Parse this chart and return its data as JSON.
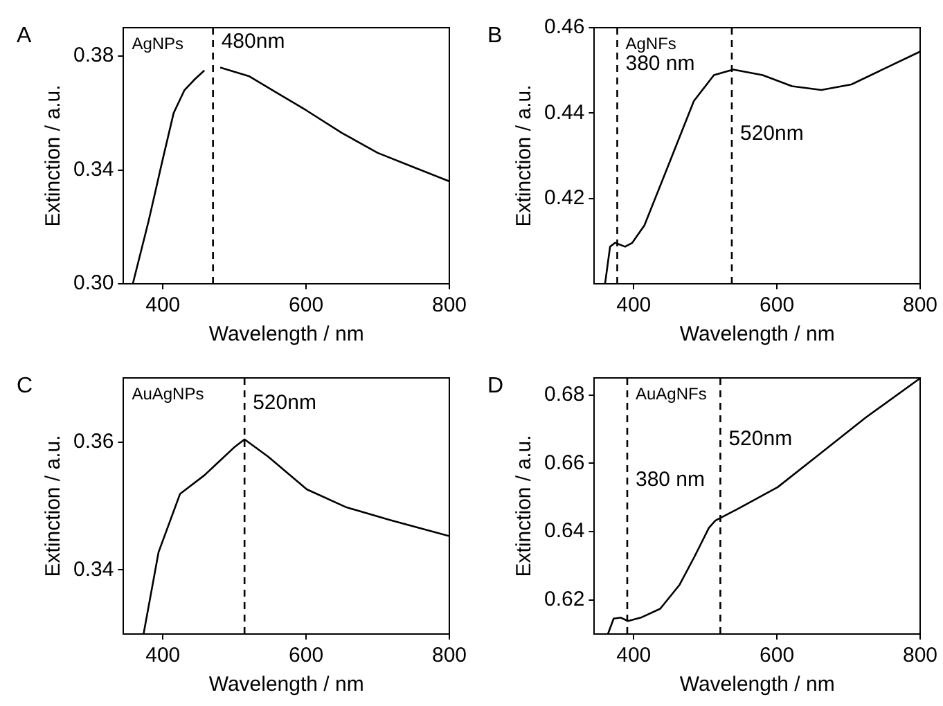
{
  "chart_data": [
    {
      "type": "line",
      "xlabel": "Wavelength / nm",
      "ylabel": "Extinction / a.u.",
      "annotations": [
        "A",
        "AgNPs",
        {
          "text": "480nm",
          "x": 470,
          "y": 0.385
        }
      ],
      "xlim": [
        345,
        800
      ],
      "ylim": [
        0.3,
        0.39
      ],
      "xticks": [
        400,
        600,
        800
      ],
      "yticks": [
        {
          "value": 0.3,
          "label": "0.30"
        },
        {
          "value": 0.34,
          "label": "0.34"
        },
        {
          "value": 0.38,
          "label": "0.38"
        }
      ],
      "grid": false,
      "legend": false,
      "marker": "none",
      "ref_lines": [
        {
          "axis": "x",
          "value": 470,
          "line_style": "dashed",
          "color": "#000000"
        }
      ],
      "series": [
        {
          "color": "#000000",
          "x": [
            358,
            380,
            400,
            415,
            430,
            445,
            458,
            470,
            480,
            520,
            560,
            600,
            650,
            700,
            750,
            800
          ],
          "values": [
            0.3,
            0.322,
            0.344,
            0.36,
            0.368,
            0.372,
            0.375,
            null,
            0.376,
            0.373,
            0.367,
            0.361,
            0.353,
            0.346,
            0.341,
            0.336
          ]
        }
      ]
    },
    {
      "type": "line",
      "xlabel": "Wavelength / nm",
      "ylabel": "Extinction / a.u.",
      "annotations": [
        "B",
        "AgNFs",
        {
          "text": "380 nm",
          "x": 377,
          "y": 0.4515
        },
        {
          "text": "520nm",
          "x": 537,
          "y": 0.435
        }
      ],
      "xlim": [
        345,
        800
      ],
      "ylim": [
        0.4,
        0.46
      ],
      "xticks": [
        400,
        600,
        800
      ],
      "yticks": [
        {
          "value": 0.42,
          "label": "0.42"
        },
        {
          "value": 0.44,
          "label": "0.44"
        },
        {
          "value": 0.46,
          "label": "0.46"
        }
      ],
      "grid": false,
      "legend": false,
      "marker": "none",
      "ref_lines": [
        {
          "axis": "x",
          "value": 377,
          "line_style": "dashed",
          "color": "#000000"
        },
        {
          "axis": "x",
          "value": 537,
          "line_style": "dashed",
          "color": "#000000"
        }
      ],
      "series": [
        {
          "color": "#000000",
          "x": [
            360,
            367,
            374,
            388,
            398,
            415,
            449,
            484,
            512,
            539,
            580,
            621,
            662,
            704,
            745,
            800
          ],
          "values": [
            0.4,
            0.4087,
            0.4096,
            0.4087,
            0.4096,
            0.4137,
            0.428,
            0.4428,
            0.4489,
            0.4502,
            0.4489,
            0.4463,
            0.4454,
            0.4467,
            0.45,
            0.4544
          ]
        }
      ]
    },
    {
      "type": "line",
      "xlabel": "Wavelength / nm",
      "ylabel": "Extinction / a.u.",
      "annotations": [
        "C",
        "AuAgNPs",
        {
          "text": "520nm",
          "x": 514,
          "y": 0.366
        }
      ],
      "xlim": [
        345,
        800
      ],
      "ylim": [
        0.33,
        0.37
      ],
      "xticks": [
        400,
        600,
        800
      ],
      "yticks": [
        {
          "value": 0.34,
          "label": "0.34"
        },
        {
          "value": 0.36,
          "label": "0.36"
        }
      ],
      "grid": false,
      "legend": false,
      "marker": "none",
      "ref_lines": [
        {
          "axis": "x",
          "value": 514,
          "line_style": "dashed",
          "color": "#000000"
        }
      ],
      "series": [
        {
          "color": "#000000",
          "x": [
            373,
            394,
            424,
            458,
            479,
            499,
            514,
            547,
            601,
            656,
            717,
            800
          ],
          "values": [
            0.33,
            0.3428,
            0.3519,
            0.3548,
            0.357,
            0.3591,
            0.3604,
            0.3577,
            0.3526,
            0.3498,
            0.3478,
            0.3453
          ]
        }
      ]
    },
    {
      "type": "line",
      "xlabel": "Wavelength / nm",
      "ylabel": "Extinction / a.u.",
      "annotations": [
        "D",
        "AuAgNFs",
        {
          "text": "380 nm",
          "x": 391,
          "y": 0.655
        },
        {
          "text": "520nm",
          "x": 521,
          "y": 0.667
        }
      ],
      "xlim": [
        345,
        800
      ],
      "ylim": [
        0.61,
        0.685
      ],
      "xticks": [
        400,
        600,
        800
      ],
      "yticks": [
        {
          "value": 0.62,
          "label": "0.62"
        },
        {
          "value": 0.64,
          "label": "0.64"
        },
        {
          "value": 0.66,
          "label": "0.66"
        },
        {
          "value": 0.68,
          "label": "0.68"
        }
      ],
      "grid": false,
      "legend": false,
      "marker": "none",
      "ref_lines": [
        {
          "axis": "x",
          "value": 391,
          "line_style": "dashed",
          "color": "#000000"
        },
        {
          "axis": "x",
          "value": 521,
          "line_style": "dashed",
          "color": "#000000"
        }
      ],
      "series": [
        {
          "color": "#000000",
          "x": [
            364,
            372,
            382,
            392,
            410,
            437,
            464,
            485,
            505,
            514,
            546,
            601,
            656,
            724,
            800
          ],
          "values": [
            0.61,
            0.6145,
            0.6148,
            0.6138,
            0.6148,
            0.6174,
            0.6244,
            0.6327,
            0.6411,
            0.6432,
            0.6467,
            0.653,
            0.6621,
            0.6734,
            0.6849
          ]
        }
      ]
    }
  ]
}
